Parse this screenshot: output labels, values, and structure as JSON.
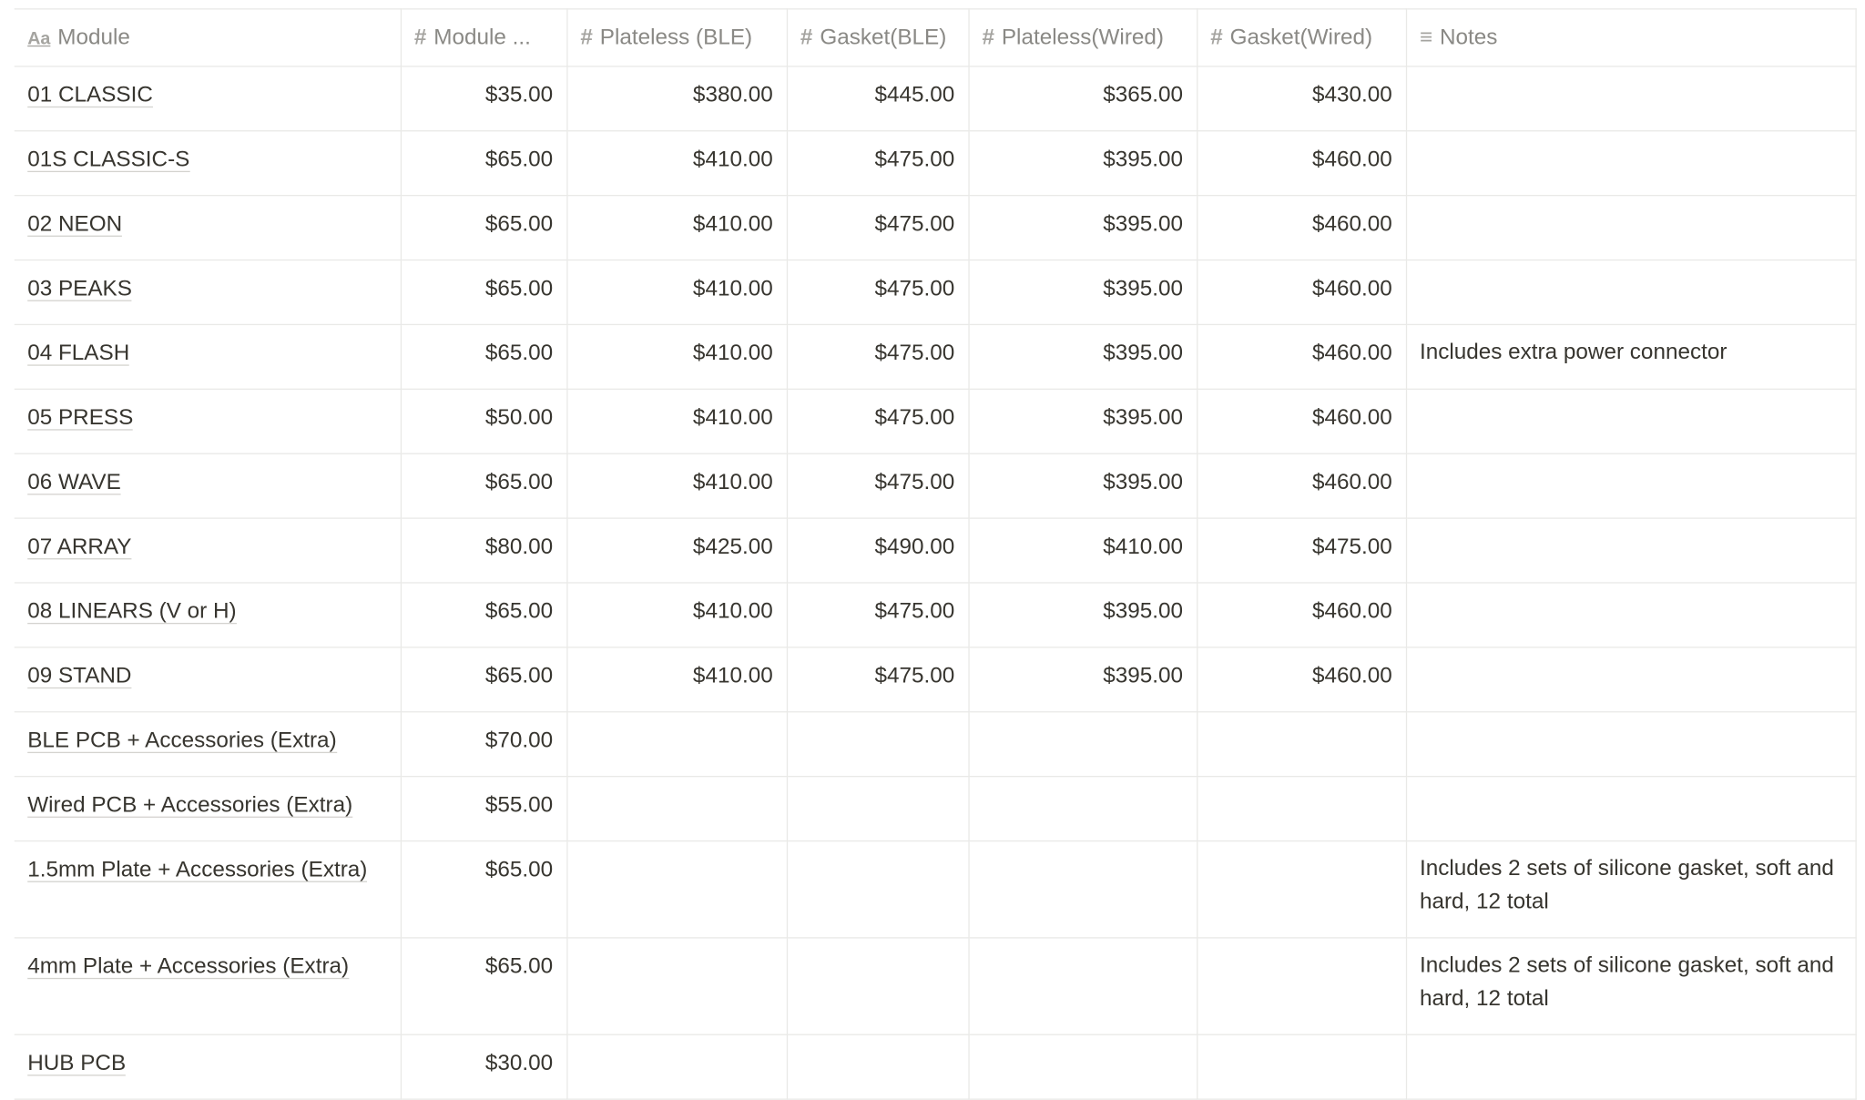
{
  "columns": [
    {
      "label": "Module",
      "icon": "text-title-icon",
      "glyph": "Aa"
    },
    {
      "label": "Module ...",
      "icon": "number-icon",
      "glyph": "#"
    },
    {
      "label": "Plateless (BLE)",
      "icon": "number-icon",
      "glyph": "#"
    },
    {
      "label": "Gasket(BLE)",
      "icon": "number-icon",
      "glyph": "#"
    },
    {
      "label": "Plateless(Wired)",
      "icon": "number-icon",
      "glyph": "#"
    },
    {
      "label": "Gasket(Wired)",
      "icon": "number-icon",
      "glyph": "#"
    },
    {
      "label": "Notes",
      "icon": "text-lines-icon",
      "glyph": "≡"
    }
  ],
  "rows": [
    [
      "01 CLASSIC",
      "$35.00",
      "$380.00",
      "$445.00",
      "$365.00",
      "$430.00",
      ""
    ],
    [
      "01S CLASSIC-S",
      "$65.00",
      "$410.00",
      "$475.00",
      "$395.00",
      "$460.00",
      ""
    ],
    [
      "02 NEON",
      "$65.00",
      "$410.00",
      "$475.00",
      "$395.00",
      "$460.00",
      ""
    ],
    [
      "03 PEAKS",
      "$65.00",
      "$410.00",
      "$475.00",
      "$395.00",
      "$460.00",
      ""
    ],
    [
      "04 FLASH",
      "$65.00",
      "$410.00",
      "$475.00",
      "$395.00",
      "$460.00",
      "Includes extra power connector"
    ],
    [
      "05 PRESS",
      "$50.00",
      "$410.00",
      "$475.00",
      "$395.00",
      "$460.00",
      ""
    ],
    [
      "06 WAVE",
      "$65.00",
      "$410.00",
      "$475.00",
      "$395.00",
      "$460.00",
      ""
    ],
    [
      "07 ARRAY",
      "$80.00",
      "$425.00",
      "$490.00",
      "$410.00",
      "$475.00",
      ""
    ],
    [
      "08 LINEARS (V or H)",
      "$65.00",
      "$410.00",
      "$475.00",
      "$395.00",
      "$460.00",
      ""
    ],
    [
      "09 STAND",
      "$65.00",
      "$410.00",
      "$475.00",
      "$395.00",
      "$460.00",
      ""
    ],
    [
      "BLE PCB + Accessories (Extra)",
      "$70.00",
      "",
      "",
      "",
      "",
      ""
    ],
    [
      "Wired PCB + Accessories (Extra)",
      "$55.00",
      "",
      "",
      "",
      "",
      ""
    ],
    [
      "1.5mm Plate + Accessories (Extra)",
      "$65.00",
      "",
      "",
      "",
      "",
      "Includes 2 sets of silicone gasket, soft and hard, 12 total"
    ],
    [
      "4mm Plate + Accessories (Extra)",
      "$65.00",
      "",
      "",
      "",
      "",
      "Includes 2 sets of silicone gasket, soft and hard, 12 total"
    ],
    [
      "HUB PCB",
      "$30.00",
      "",
      "",
      "",
      "",
      ""
    ]
  ]
}
